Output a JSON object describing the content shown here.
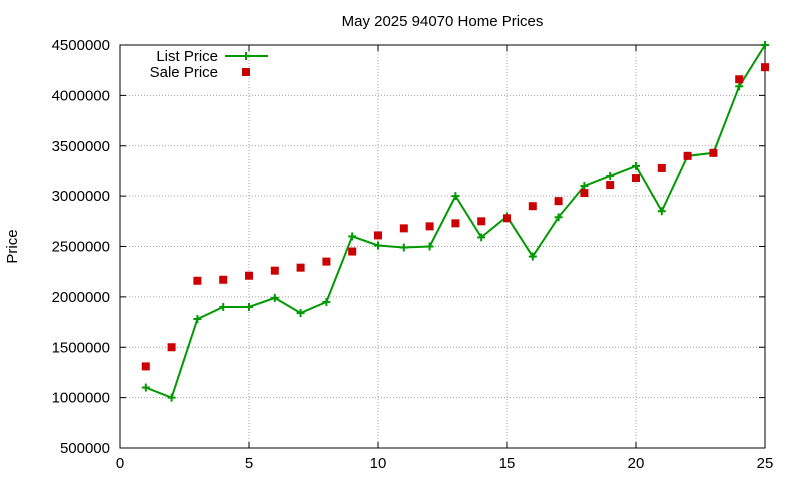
{
  "chart_data": {
    "type": "line",
    "title": "May 2025 94070 Home Prices",
    "xlabel": "",
    "ylabel": "Price",
    "xlim": [
      0,
      25
    ],
    "ylim": [
      500000,
      4500000
    ],
    "x_ticks": [
      0,
      5,
      10,
      15,
      20,
      25
    ],
    "y_ticks": [
      500000,
      1000000,
      1500000,
      2000000,
      2500000,
      3000000,
      3500000,
      4000000,
      4500000
    ],
    "grid": true,
    "legend_position": "top-left",
    "series": [
      {
        "name": "List Price",
        "style": "line-cross",
        "color": "#009900",
        "x": [
          1,
          2,
          3,
          4,
          5,
          6,
          7,
          8,
          9,
          10,
          11,
          12,
          13,
          14,
          15,
          16,
          17,
          18,
          19,
          20,
          21,
          22,
          23,
          24,
          25
        ],
        "y": [
          1100000,
          1000000,
          1780000,
          1900000,
          1900000,
          1990000,
          1840000,
          1950000,
          2600000,
          2510000,
          2490000,
          2500000,
          3000000,
          2590000,
          2800000,
          2400000,
          2790000,
          3100000,
          3200000,
          3300000,
          2850000,
          3400000,
          3430000,
          4090000,
          4500000
        ]
      },
      {
        "name": "Sale Price",
        "style": "square-points",
        "color": "#cc0000",
        "x": [
          1,
          2,
          3,
          4,
          5,
          6,
          7,
          8,
          9,
          10,
          11,
          12,
          13,
          14,
          15,
          16,
          17,
          18,
          19,
          20,
          21,
          22,
          23,
          24,
          25
        ],
        "y": [
          1310000,
          1500000,
          2160000,
          2170000,
          2210000,
          2260000,
          2290000,
          2350000,
          2450000,
          2610000,
          2680000,
          2700000,
          2730000,
          2750000,
          2780000,
          2900000,
          2950000,
          3030000,
          3110000,
          3180000,
          3280000,
          3400000,
          3430000,
          4160000,
          4280000
        ]
      }
    ]
  }
}
